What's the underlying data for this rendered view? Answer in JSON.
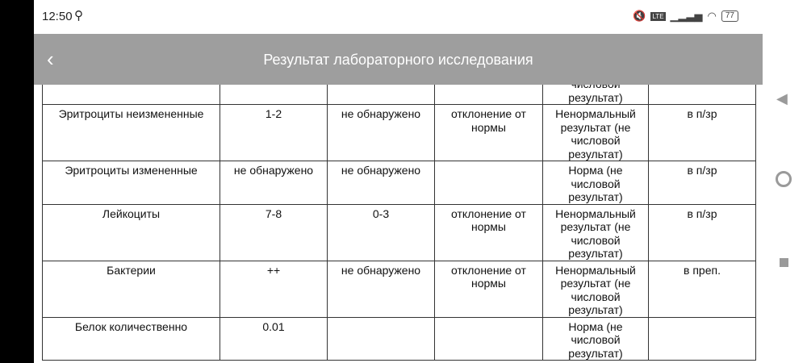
{
  "status": {
    "time": "12:50",
    "battery": "77"
  },
  "header": {
    "title": "Результат лабораторного исследования",
    "back": "‹"
  },
  "table": {
    "rows": [
      [
        "",
        "",
        "",
        "",
        "Ненормальный результат (не числовой результат)",
        ""
      ],
      [
        "Эритроциты неизмененные",
        "1-2",
        "не обнаружено",
        "отклонение от нормы",
        "Ненормальный результат (не числовой результат)",
        "в п/зр"
      ],
      [
        "Эритроциты измененные",
        "не обнаружено",
        "не обнаружено",
        "",
        "Норма (не числовой результат)",
        "в п/зр"
      ],
      [
        "Лейкоциты",
        "7-8",
        "0-3",
        "отклонение от нормы",
        "Ненормальный результат (не числовой результат)",
        "в п/зр"
      ],
      [
        "Бактерии",
        "++",
        "не обнаружено",
        "отклонение от нормы",
        "Ненормальный результат (не числовой результат)",
        "в преп."
      ],
      [
        "Белок количественно",
        "0.01",
        "",
        "",
        "Норма (не числовой результат)",
        ""
      ]
    ]
  }
}
